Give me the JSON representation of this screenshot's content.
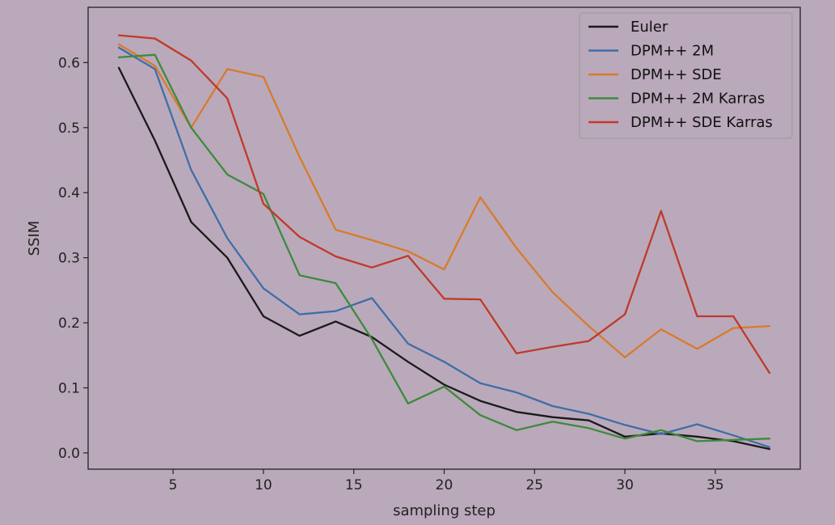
{
  "chart_data": {
    "type": "line",
    "title": "",
    "xlabel": "sampling step",
    "ylabel": "SSIM",
    "xlim": [
      0.3,
      39.7
    ],
    "ylim": [
      -0.025,
      0.685
    ],
    "x_ticks": [
      5,
      10,
      15,
      20,
      25,
      30,
      35
    ],
    "x_tick_labels": [
      "5",
      "10",
      "15",
      "20",
      "25",
      "30",
      "35"
    ],
    "y_ticks": [
      0.0,
      0.1,
      0.2,
      0.3,
      0.4,
      0.5,
      0.6
    ],
    "y_tick_labels": [
      "0.0",
      "0.1",
      "0.2",
      "0.3",
      "0.4",
      "0.5",
      "0.6"
    ],
    "grid": false,
    "legend_position": "top-right",
    "background_color": "#baa9ba",
    "x": [
      2,
      4,
      6,
      8,
      10,
      12,
      14,
      16,
      18,
      20,
      22,
      24,
      26,
      28,
      30,
      32,
      34,
      36,
      38
    ],
    "series": [
      {
        "name": "Euler",
        "color": "#1a1a1a",
        "values": [
          0.592,
          0.48,
          0.355,
          0.3,
          0.21,
          0.18,
          0.202,
          0.178,
          0.14,
          0.105,
          0.08,
          0.063,
          0.055,
          0.05,
          0.025,
          0.03,
          0.025,
          0.018,
          0.006
        ]
      },
      {
        "name": "DPM++ 2M",
        "color": "#3f6ea8",
        "values": [
          0.623,
          0.59,
          0.435,
          0.33,
          0.253,
          0.213,
          0.218,
          0.238,
          0.168,
          0.14,
          0.107,
          0.093,
          0.072,
          0.06,
          0.043,
          0.029,
          0.044,
          0.027,
          0.009
        ]
      },
      {
        "name": "DPM++ SDE",
        "color": "#d97a2b",
        "values": [
          0.628,
          0.595,
          0.5,
          0.59,
          0.578,
          0.455,
          0.343,
          0.327,
          0.31,
          0.282,
          0.393,
          0.315,
          0.247,
          0.195,
          0.147,
          0.19,
          0.16,
          0.192,
          0.195
        ]
      },
      {
        "name": "DPM++ 2M Karras",
        "color": "#3d8a3d",
        "values": [
          0.608,
          0.612,
          0.5,
          0.428,
          0.398,
          0.273,
          0.261,
          0.175,
          0.076,
          0.102,
          0.058,
          0.035,
          0.048,
          0.038,
          0.022,
          0.035,
          0.018,
          0.02,
          0.022
        ]
      },
      {
        "name": "DPM++ SDE Karras",
        "color": "#c0392b",
        "values": [
          0.642,
          0.637,
          0.603,
          0.545,
          0.383,
          0.332,
          0.302,
          0.285,
          0.303,
          0.237,
          0.236,
          0.153,
          0.163,
          0.172,
          0.213,
          0.372,
          0.21,
          0.21,
          0.123
        ]
      }
    ]
  }
}
